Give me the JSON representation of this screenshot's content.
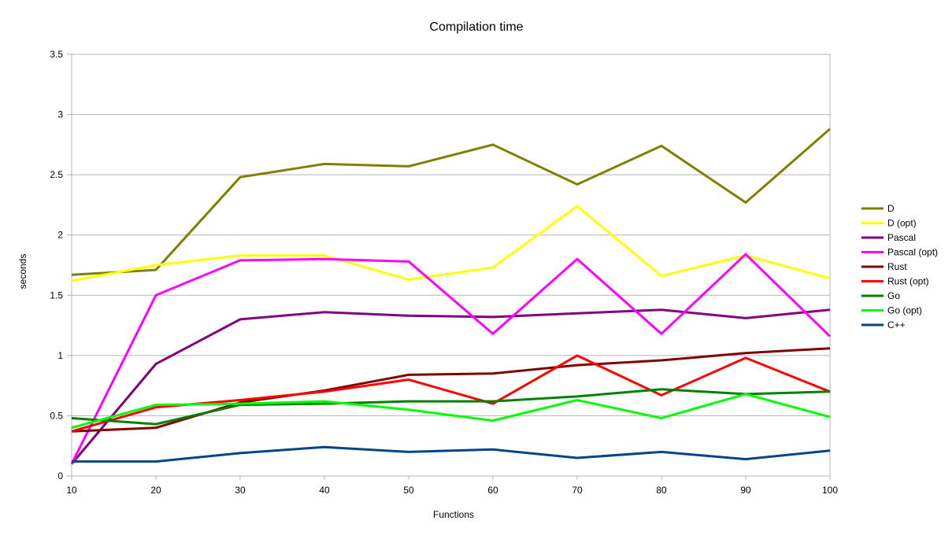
{
  "chart_data": {
    "type": "line",
    "title": "Compilation time",
    "xlabel": "Functions",
    "ylabel": "seconds",
    "x": [
      10,
      20,
      30,
      40,
      50,
      60,
      70,
      80,
      90,
      100
    ],
    "x_ticks": [
      "10",
      "20",
      "30",
      "40",
      "50",
      "60",
      "70",
      "80",
      "90",
      "100"
    ],
    "ylim": [
      0,
      3.5
    ],
    "y_ticks": [
      "0",
      "0.5",
      "1",
      "1.5",
      "2",
      "2.5",
      "3",
      "3.5"
    ],
    "grid": "horizontal",
    "legend_position": "right",
    "series": [
      {
        "name": "D",
        "color": "#808000",
        "values": [
          1.67,
          1.71,
          2.48,
          2.59,
          2.57,
          2.75,
          2.42,
          2.74,
          2.27,
          2.88
        ]
      },
      {
        "name": "D (opt)",
        "color": "#ffff00",
        "values": [
          1.62,
          1.75,
          1.83,
          1.83,
          1.63,
          1.73,
          2.24,
          1.66,
          1.83,
          1.64
        ]
      },
      {
        "name": "Pascal",
        "color": "#800080",
        "values": [
          0.1,
          0.93,
          1.3,
          1.36,
          1.33,
          1.32,
          1.35,
          1.38,
          1.31,
          1.38
        ]
      },
      {
        "name": "Pascal (opt)",
        "color": "#ff00ff",
        "values": [
          0.1,
          1.5,
          1.79,
          1.8,
          1.78,
          1.18,
          1.8,
          1.18,
          1.84,
          1.16
        ]
      },
      {
        "name": "Rust",
        "color": "#800000",
        "values": [
          0.37,
          0.4,
          0.61,
          0.71,
          0.84,
          0.85,
          0.92,
          0.96,
          1.02,
          1.06
        ]
      },
      {
        "name": "Rust (opt)",
        "color": "#ff0000",
        "values": [
          0.37,
          0.57,
          0.63,
          0.7,
          0.8,
          0.6,
          1.0,
          0.67,
          0.98,
          0.7
        ]
      },
      {
        "name": "Go",
        "color": "#008000",
        "values": [
          0.48,
          0.43,
          0.59,
          0.6,
          0.62,
          0.62,
          0.66,
          0.72,
          0.68,
          0.7
        ]
      },
      {
        "name": "Go (opt)",
        "color": "#00ff00",
        "values": [
          0.4,
          0.59,
          0.6,
          0.62,
          0.55,
          0.46,
          0.63,
          0.48,
          0.68,
          0.49
        ]
      },
      {
        "name": "C++",
        "color": "#004586",
        "values": [
          0.12,
          0.12,
          0.19,
          0.24,
          0.2,
          0.22,
          0.15,
          0.2,
          0.14,
          0.21
        ]
      }
    ]
  }
}
